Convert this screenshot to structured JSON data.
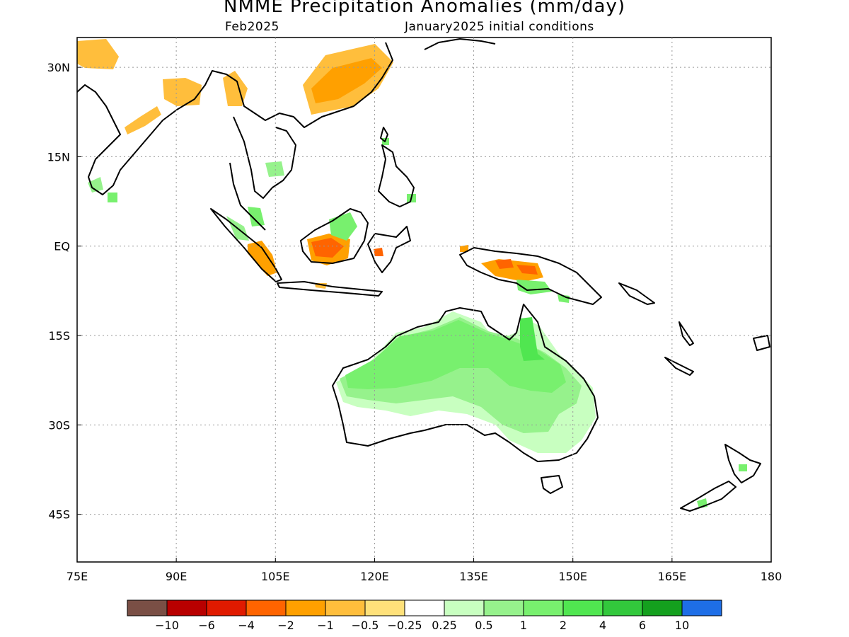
{
  "title": "NMME Precipitation Anomalies (mm/day)",
  "subtitle_left": "Feb2025",
  "subtitle_right": "January2025 initial conditions",
  "map": {
    "lon_range": [
      75,
      180
    ],
    "lat_range": [
      -53,
      35
    ],
    "grid": "dotted",
    "lon_ticks": [
      {
        "value": 75,
        "label": "75E"
      },
      {
        "value": 90,
        "label": "90E"
      },
      {
        "value": 105,
        "label": "105E"
      },
      {
        "value": 120,
        "label": "120E"
      },
      {
        "value": 135,
        "label": "135E"
      },
      {
        "value": 150,
        "label": "150E"
      },
      {
        "value": 165,
        "label": "165E"
      },
      {
        "value": 180,
        "label": "180"
      }
    ],
    "lat_ticks": [
      {
        "value": 30,
        "label": "30N"
      },
      {
        "value": 15,
        "label": "15N"
      },
      {
        "value": 0,
        "label": "EQ"
      },
      {
        "value": -15,
        "label": "15S"
      },
      {
        "value": -30,
        "label": "30S"
      },
      {
        "value": -45,
        "label": "45S"
      }
    ]
  },
  "colorbar": {
    "colors": [
      "#7a4f45",
      "#b80000",
      "#e01a00",
      "#ff6400",
      "#ffa000",
      "#ffbe3c",
      "#ffe17a",
      "#ffffff",
      "#c8ffc0",
      "#96f28c",
      "#78f06e",
      "#50e650",
      "#32c83c",
      "#14a01e",
      "#1e6ee6"
    ],
    "labels": [
      "−10",
      "−6",
      "−4",
      "−2",
      "−1",
      "−0.5",
      "−0.25",
      "0.25",
      "0.5",
      "1",
      "2",
      "4",
      "6",
      "10"
    ]
  },
  "colors": {
    "brown": "#7a4f45",
    "darkred": "#b80000",
    "red": "#e01a00",
    "orange_dark": "#ff6400",
    "orange": "#ffa000",
    "orange_light": "#ffbe3c",
    "yellow": "#ffe17a",
    "white": "#ffffff",
    "green_pale": "#c8ffc0",
    "green_light": "#96f28c",
    "green": "#78f06e",
    "green_mid": "#50e650",
    "green_dark": "#32c83c",
    "green_deep": "#14a01e",
    "blue": "#1e6ee6"
  },
  "anomaly_regions": [
    {
      "name": "northwest-india-dry",
      "level": "orange_light"
    },
    {
      "name": "tibet-dry",
      "level": "orange_light"
    },
    {
      "name": "china-east-dry",
      "level": "orange_light"
    },
    {
      "name": "china-core-dry",
      "level": "orange"
    },
    {
      "name": "sumatra-south-dry",
      "level": "orange"
    },
    {
      "name": "borneo-south-dry",
      "level": "orange"
    },
    {
      "name": "borneo-core-dry",
      "level": "orange_dark"
    },
    {
      "name": "new-guinea-dry",
      "level": "orange"
    },
    {
      "name": "new-guinea-core-dry",
      "level": "orange_dark"
    },
    {
      "name": "australia-north-wet",
      "level": "green"
    },
    {
      "name": "australia-inner-wet",
      "level": "green_light"
    },
    {
      "name": "australia-fringe-wet",
      "level": "green_pale"
    },
    {
      "name": "cape-york-wet",
      "level": "green_mid"
    }
  ]
}
